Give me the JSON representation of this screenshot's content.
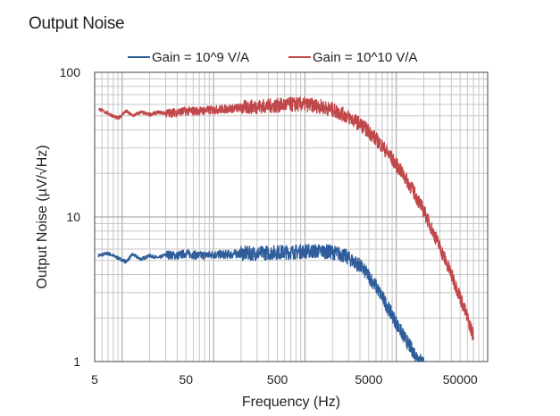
{
  "chart_data": {
    "type": "line",
    "title": "Output Noise",
    "xlabel": "Frequency (Hz)",
    "ylabel": "Output Noise (µV/√Hz)",
    "xscale": "log",
    "yscale": "log",
    "xlim": [
      5,
      100000
    ],
    "ylim": [
      1,
      100
    ],
    "grid": true,
    "legend_position": "top",
    "x_ticks": [
      {
        "value": 5,
        "label": "5"
      },
      {
        "value": 50,
        "label": "50"
      },
      {
        "value": 500,
        "label": "500"
      },
      {
        "value": 5000,
        "label": "5000"
      },
      {
        "value": 50000,
        "label": "50000"
      }
    ],
    "y_ticks": [
      {
        "value": 1,
        "label": "1"
      },
      {
        "value": 10,
        "label": "10"
      },
      {
        "value": 100,
        "label": "100"
      }
    ],
    "series": [
      {
        "name": "Gain = 10^9 V/A",
        "color": "#2e5d9a",
        "x": [
          5.5,
          7,
          9,
          11,
          13,
          16,
          20,
          25,
          30,
          40,
          50,
          70,
          100,
          150,
          200,
          300,
          500,
          700,
          1000,
          1500,
          2000,
          2500,
          3000,
          4000,
          5000,
          6000,
          7000,
          8000,
          9000,
          10000,
          12000,
          14000,
          16000,
          18000,
          20000
        ],
        "values": [
          5.4,
          5.6,
          5.2,
          4.9,
          5.5,
          5.1,
          5.4,
          5.2,
          5.5,
          5.4,
          5.6,
          5.4,
          5.5,
          5.5,
          5.6,
          5.6,
          5.7,
          5.7,
          5.8,
          5.8,
          5.7,
          5.5,
          5.2,
          4.6,
          3.9,
          3.3,
          2.8,
          2.4,
          2.1,
          1.85,
          1.5,
          1.28,
          1.13,
          1.03,
          0.98
        ]
      },
      {
        "name": "Gain = 10^10 V/A",
        "color": "#c0474a",
        "x": [
          5.5,
          7,
          9,
          11,
          13,
          16,
          20,
          25,
          30,
          40,
          50,
          70,
          100,
          150,
          200,
          300,
          500,
          700,
          1000,
          1500,
          2000,
          2500,
          3000,
          4000,
          5000,
          7000,
          10000,
          12000,
          15000,
          20000,
          25000,
          30000,
          40000,
          50000,
          60000,
          70000
        ],
        "values": [
          56,
          52,
          48,
          54,
          50,
          53,
          51,
          53,
          52,
          53,
          54,
          54,
          55,
          56,
          57,
          58,
          59,
          60,
          60,
          58,
          55,
          52,
          49,
          44,
          39,
          31,
          23,
          19.5,
          15.5,
          11,
          8,
          6.2,
          4.0,
          2.8,
          2.0,
          1.5
        ]
      }
    ]
  }
}
